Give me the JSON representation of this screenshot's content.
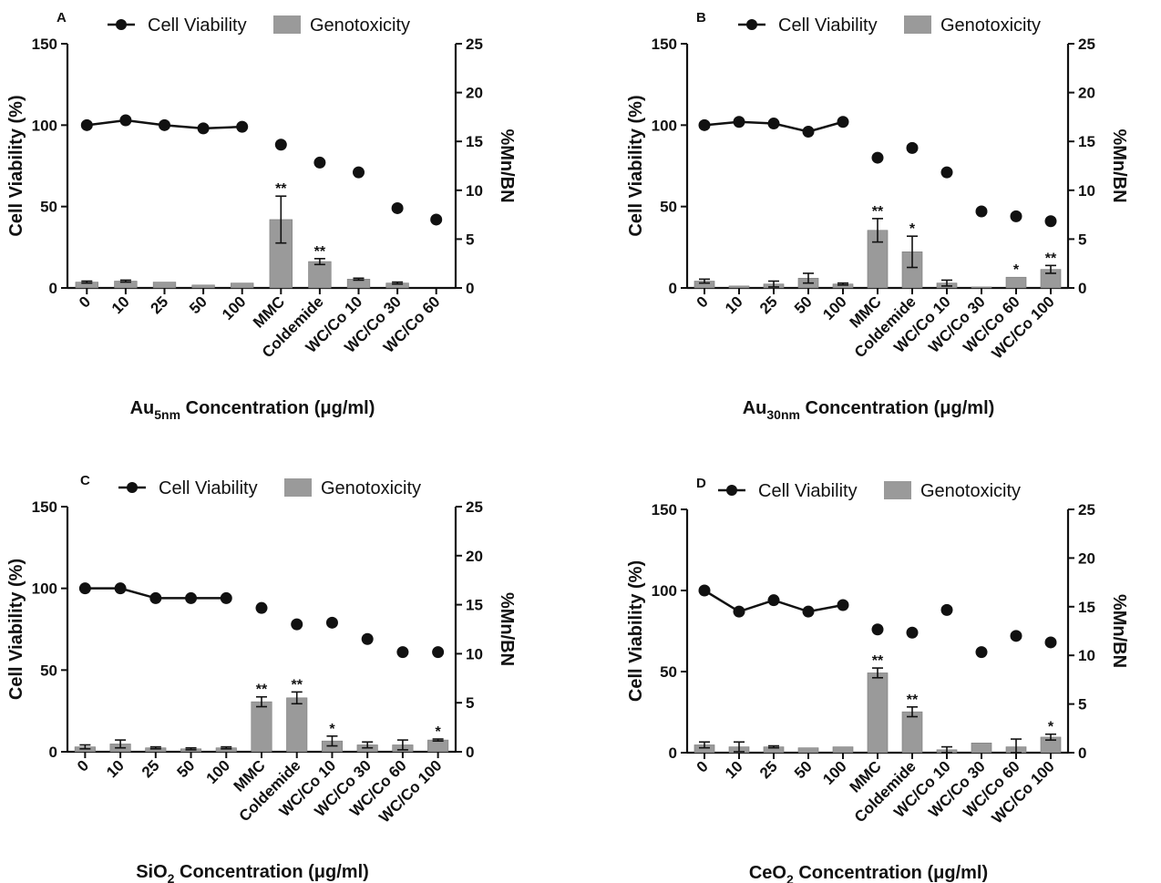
{
  "legend": {
    "line": "Cell Viability",
    "bar": "Genotoxicity"
  },
  "colors": {
    "line": "#111111",
    "bar": "#9a9a9a",
    "bar_stroke": "#7a7a7a",
    "axis": "#111111"
  },
  "chart_data": [
    {
      "type": "bar",
      "panel": "A",
      "categories": [
        "0",
        "10",
        "25",
        "50",
        "100",
        "MMC",
        "Coldemide",
        "WC/Co 10",
        "WC/Co 30",
        "WC/Co 60"
      ],
      "xlabel": {
        "prefix": "Au",
        "sub": "5nm",
        "suffix": " Concentration (μg/ml)"
      },
      "ylabel_left": "Cell Viability (%)",
      "ylabel_right": "%Mn/BN",
      "ylim_left": [
        0,
        150
      ],
      "ylim_right": [
        0,
        25
      ],
      "yticks_left": [
        "0",
        "50",
        "100",
        "150"
      ],
      "yticks_right": [
        "0",
        "5",
        "10",
        "15",
        "20",
        "25"
      ],
      "series": [
        {
          "name": "Cell Viability",
          "axis": "left",
          "connected_count": 5,
          "values": [
            100,
            103,
            100,
            98,
            99,
            88,
            77,
            71,
            49,
            42
          ]
        },
        {
          "name": "Genotoxicity",
          "axis": "right",
          "values": [
            0.6,
            0.7,
            0.6,
            0.3,
            0.5,
            7.0,
            2.7,
            0.9,
            0.5,
            0
          ],
          "errors": [
            0.1,
            0.1,
            0,
            0,
            0,
            2.4,
            0.3,
            0.1,
            0.1,
            0
          ],
          "sig": [
            "",
            "",
            "",
            "",
            "",
            "**",
            "**",
            "",
            "",
            ""
          ]
        }
      ]
    },
    {
      "type": "bar",
      "panel": "B",
      "categories": [
        "0",
        "10",
        "25",
        "50",
        "100",
        "MMC",
        "Coldemide",
        "WC/Co 10",
        "WC/Co 30",
        "WC/Co 60",
        "WC/Co 100"
      ],
      "xlabel": {
        "prefix": "Au",
        "sub": "30nm",
        "suffix": " Concentration (μg/ml)"
      },
      "ylabel_left": "Cell Viability (%)",
      "ylabel_right": "%Mn/BN",
      "ylim_left": [
        0,
        150
      ],
      "ylim_right": [
        0,
        25
      ],
      "yticks_left": [
        "0",
        "50",
        "100",
        "150"
      ],
      "yticks_right": [
        "0",
        "5",
        "10",
        "15",
        "20",
        "25"
      ],
      "series": [
        {
          "name": "Cell Viability",
          "axis": "left",
          "connected_count": 5,
          "values": [
            100,
            102,
            101,
            96,
            102,
            80,
            86,
            71,
            47,
            44,
            41
          ]
        },
        {
          "name": "Genotoxicity",
          "axis": "right",
          "values": [
            0.7,
            0.2,
            0.4,
            1.0,
            0.4,
            5.9,
            3.7,
            0.5,
            0.1,
            1.1,
            1.9
          ],
          "errors": [
            0.2,
            0,
            0.3,
            0.5,
            0.1,
            1.2,
            1.6,
            0.3,
            0,
            0,
            0.4
          ],
          "sig": [
            "",
            "",
            "",
            "",
            "",
            "**",
            "*",
            "",
            "",
            "*",
            "**"
          ]
        }
      ]
    },
    {
      "type": "bar",
      "panel": "C",
      "categories": [
        "0",
        "10",
        "25",
        "50",
        "100",
        "MMC",
        "Coldemide",
        "WC/Co 10",
        "WC/Co 30",
        "WC/Co 60",
        "WC/Co 100"
      ],
      "xlabel": {
        "prefix": "SiO",
        "sub": "2",
        "suffix": " Concentration (μg/ml)"
      },
      "ylabel_left": "Cell Viability (%)",
      "ylabel_right": "%Mn/BN",
      "ylim_left": [
        0,
        150
      ],
      "ylim_right": [
        0,
        25
      ],
      "yticks_left": [
        "0",
        "50",
        "100",
        "150"
      ],
      "yticks_right": [
        "0",
        "5",
        "10",
        "15",
        "20",
        "25"
      ],
      "series": [
        {
          "name": "Cell Viability",
          "axis": "left",
          "connected_count": 5,
          "values": [
            100,
            100,
            94,
            94,
            94,
            88,
            78,
            79,
            69,
            61,
            61
          ]
        },
        {
          "name": "Genotoxicity",
          "axis": "right",
          "values": [
            0.5,
            0.8,
            0.4,
            0.3,
            0.4,
            5.1,
            5.5,
            1.1,
            0.7,
            0.7,
            1.2
          ],
          "errors": [
            0.2,
            0.4,
            0.1,
            0.1,
            0.1,
            0.5,
            0.6,
            0.5,
            0.3,
            0.5,
            0.1
          ],
          "sig": [
            "",
            "",
            "",
            "",
            "",
            "**",
            "**",
            "*",
            "",
            "",
            "*"
          ]
        }
      ]
    },
    {
      "type": "bar",
      "panel": "D",
      "categories": [
        "0",
        "10",
        "25",
        "50",
        "100",
        "MMC",
        "Coldemide",
        "WC/Co 10",
        "WC/Co 30",
        "WC/Co 60",
        "WC/Co 100"
      ],
      "xlabel": {
        "prefix": "CeO",
        "sub": "2",
        "suffix": " Concentration (μg/ml)"
      },
      "ylabel_left": "Cell Viability (%)",
      "ylabel_right": "%Mn/BN",
      "ylim_left": [
        0,
        150
      ],
      "ylim_right": [
        0,
        25
      ],
      "yticks_left": [
        "0",
        "50",
        "100",
        "150"
      ],
      "yticks_right": [
        "0",
        "5",
        "10",
        "15",
        "20",
        "25"
      ],
      "series": [
        {
          "name": "Cell Viability",
          "axis": "left",
          "connected_count": 5,
          "values": [
            100,
            87,
            94,
            87,
            91,
            76,
            74,
            88,
            62,
            72,
            68
          ]
        },
        {
          "name": "Genotoxicity",
          "axis": "right",
          "values": [
            0.8,
            0.6,
            0.6,
            0.5,
            0.6,
            8.2,
            4.2,
            0.3,
            1.0,
            0.6,
            1.6
          ],
          "errors": [
            0.3,
            0.5,
            0.1,
            0,
            0,
            0.5,
            0.5,
            0.3,
            0,
            0.8,
            0.3
          ],
          "sig": [
            "",
            "",
            "",
            "",
            "",
            "**",
            "**",
            "",
            "",
            "",
            "*"
          ]
        }
      ]
    }
  ]
}
